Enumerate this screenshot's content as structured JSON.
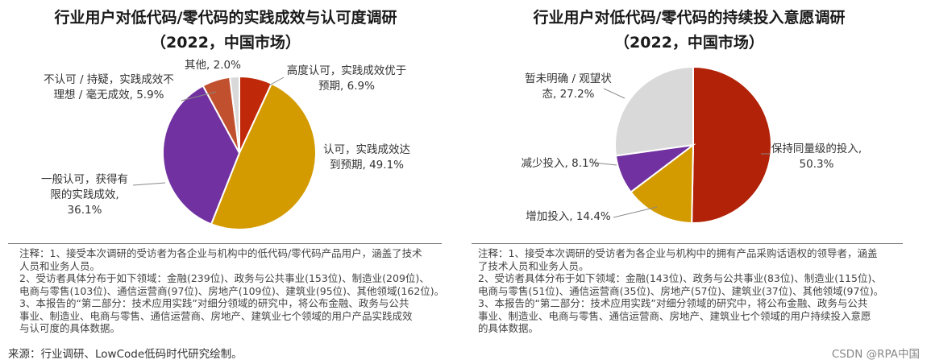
{
  "chart_data": [
    {
      "type": "pie",
      "title": "行业用户对低代码/零代码的实践成效与认可度调研",
      "subtitle": "（2022，中国市场）",
      "slices": [
        {
          "label": "高度认可，实践成效优于预期",
          "label_lines": [
            "高度认可，实践成效优于",
            "预期, 6.9%"
          ],
          "value": 6.9,
          "color": "#c0280a"
        },
        {
          "label": "认可，实践成效达到预期",
          "label_lines": [
            "认可，实践成效达",
            "到预期, 49.1%"
          ],
          "value": 49.1,
          "color": "#d49b00"
        },
        {
          "label": "一般认可，获得有限的实践成效",
          "label_lines": [
            "一般认可，获得有",
            "限的实践成效,",
            "36.1%"
          ],
          "value": 36.1,
          "color": "#7131a0"
        },
        {
          "label": "不认可 / 持疑，实践成效不理想 / 毫无成效",
          "label_lines": [
            "不认可 / 持疑，实践成效不",
            "理想 / 毫无成效, 5.9%"
          ],
          "value": 5.9,
          "color": "#c1502e"
        },
        {
          "label": "其他",
          "label_lines": [
            "其他, 2.0%"
          ],
          "value": 2.0,
          "color": "#d9d9d9"
        }
      ],
      "notes": [
        "注释：1、接受本次调研的受访者为各企业与机构中的低代码/零代码产品用户，涵盖了技术",
        "人员和业务人员。",
        "2、受访者具体分布于如下领域：金融(239位)、政务与公共事业(153位)、制造业(209位)、",
        "电商与零售(103位)、通信运营商(97位)、房地产(109位)、建筑业(95位)、其他领域(162位)。",
        "3、本报告的“第二部分：技术应用实践”对细分领域的研究中，将公布金融、政务与公共",
        "事业、制造业、电商与零售、通信运营商、房地产、建筑业七个领域的用户产品实践成效",
        "与认可度的具体数据。"
      ]
    },
    {
      "type": "pie",
      "title": "行业用户对低代码/零代码的持续投入意愿调研",
      "subtitle": "（2022，中国市场）",
      "slices": [
        {
          "label": "保持同量级的投入",
          "label_lines": [
            "保持同量级的投入,",
            "50.3%"
          ],
          "value": 50.3,
          "color": "#b22208"
        },
        {
          "label": "增加投入",
          "label_lines": [
            "增加投入, 14.4%"
          ],
          "value": 14.4,
          "color": "#d49b00"
        },
        {
          "label": "减少投入",
          "label_lines": [
            "减少投入, 8.1%"
          ],
          "value": 8.1,
          "color": "#7131a0"
        },
        {
          "label": "暂未明确 / 观望状态",
          "label_lines": [
            "暂未明确 / 观望状",
            "态, 27.2%"
          ],
          "value": 27.2,
          "color": "#d9d9d9"
        }
      ],
      "notes": [
        "注释：1、接受本次调研的受访者为各企业与机构中的拥有产品采购话语权的领导者，涵盖",
        "了技术人员和业务人员。",
        "2、受访者具体分布于如下领域：金融(143位)、政务与公共事业(83位)、制造业(115位)、",
        "电商与零售(51位)、通信运营商(35位)、房地产(57位)、建筑业(37位)、其他领域(97位)。",
        "3、本报告的“第二部分：技术应用实践”对细分领域的研究中，将公布金融、政务与公共",
        "事业、制造业、电商与零售、通信运营商、房地产、建筑业七个领域的用户持续投入意愿",
        "的具体数据。"
      ]
    }
  ],
  "source": "来源：行业调研、LowCode低码时代研究绘制。",
  "watermark": "CSDN @RPA中国"
}
